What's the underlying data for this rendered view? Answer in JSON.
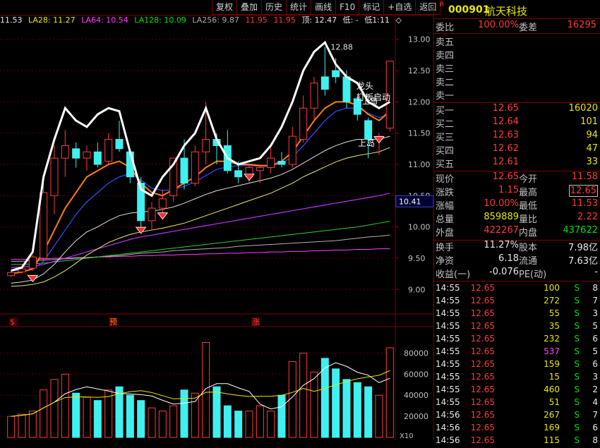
{
  "toolbar": {
    "buttons": [
      "复权",
      "叠加",
      "历史",
      "统计",
      "画线",
      "F10",
      "标记",
      "+自选",
      "返回"
    ]
  },
  "ma_line": {
    "first": "11.53",
    "la28": "LA28: 11.27",
    "la64": "LA64: 10.54",
    "la128": "LA128: 10.09",
    "la256": "LA256: 9.87",
    "v1": "11.95",
    "v2": "11.95",
    "top": "顶: 12.47",
    "low": "低: -",
    "low1": "低1:11",
    "symbol": "◇"
  },
  "chart": {
    "y_ticks": [
      "13.00",
      "12.50",
      "12.00",
      "11.50",
      "11.00",
      "10.50",
      "10.00",
      "9.50",
      "9.00"
    ],
    "price_marker": "10.41",
    "high_label": "12.88",
    "annotations": {
      "dragon": "龙头",
      "board": "打板启动",
      "island1": "上岛",
      "island2": "上岛"
    },
    "bottom_marks": [
      "$",
      "预",
      "涨"
    ],
    "vol_ticks": [
      "80000",
      "60000",
      "40000",
      "20000"
    ],
    "vol_unit": "X10"
  },
  "chart_data": {
    "type": "candlestick",
    "ylim": [
      8.8,
      13.2
    ],
    "candles": [
      {
        "o": 9.22,
        "h": 9.3,
        "l": 9.2,
        "c": 9.27
      },
      {
        "o": 9.28,
        "h": 9.35,
        "l": 9.25,
        "c": 9.33
      },
      {
        "o": 9.34,
        "h": 9.55,
        "l": 9.3,
        "c": 9.52
      },
      {
        "o": 9.5,
        "h": 10.7,
        "l": 9.45,
        "c": 10.55
      },
      {
        "o": 10.5,
        "h": 11.3,
        "l": 10.2,
        "c": 11.1
      },
      {
        "o": 11.1,
        "h": 11.55,
        "l": 10.8,
        "c": 11.3
      },
      {
        "o": 11.25,
        "h": 11.35,
        "l": 10.95,
        "c": 11.1
      },
      {
        "o": 11.1,
        "h": 11.3,
        "l": 10.9,
        "c": 11.2
      },
      {
        "o": 11.2,
        "h": 11.35,
        "l": 10.95,
        "c": 11.0
      },
      {
        "o": 11.05,
        "h": 11.5,
        "l": 11.0,
        "c": 11.4
      },
      {
        "o": 11.4,
        "h": 11.7,
        "l": 11.2,
        "c": 11.25
      },
      {
        "o": 11.2,
        "h": 11.25,
        "l": 10.7,
        "c": 10.8
      },
      {
        "o": 10.7,
        "h": 10.8,
        "l": 10.0,
        "c": 10.1
      },
      {
        "o": 10.1,
        "h": 10.4,
        "l": 9.95,
        "c": 10.3
      },
      {
        "o": 10.3,
        "h": 10.6,
        "l": 10.2,
        "c": 10.45
      },
      {
        "o": 10.5,
        "h": 11.1,
        "l": 10.4,
        "c": 11.1
      },
      {
        "o": 11.1,
        "h": 11.4,
        "l": 10.6,
        "c": 10.7
      },
      {
        "o": 10.7,
        "h": 11.3,
        "l": 10.65,
        "c": 11.2
      },
      {
        "o": 11.2,
        "h": 12.0,
        "l": 11.0,
        "c": 11.4
      },
      {
        "o": 11.4,
        "h": 11.5,
        "l": 11.0,
        "c": 11.3
      },
      {
        "o": 11.3,
        "h": 11.55,
        "l": 10.85,
        "c": 10.9
      },
      {
        "o": 10.9,
        "h": 11.05,
        "l": 10.7,
        "c": 10.8
      },
      {
        "o": 10.8,
        "h": 11.0,
        "l": 10.7,
        "c": 10.95
      },
      {
        "o": 10.9,
        "h": 11.0,
        "l": 10.7,
        "c": 10.95
      },
      {
        "o": 10.95,
        "h": 11.3,
        "l": 10.85,
        "c": 11.1
      },
      {
        "o": 11.05,
        "h": 11.2,
        "l": 10.95,
        "c": 11.0
      },
      {
        "o": 11.0,
        "h": 11.6,
        "l": 10.95,
        "c": 11.45
      },
      {
        "o": 11.4,
        "h": 12.1,
        "l": 11.35,
        "c": 11.9
      },
      {
        "o": 11.9,
        "h": 12.4,
        "l": 11.7,
        "c": 12.3
      },
      {
        "o": 12.4,
        "h": 12.88,
        "l": 12.1,
        "c": 12.2
      },
      {
        "o": 12.5,
        "h": 12.7,
        "l": 12.3,
        "c": 12.4
      },
      {
        "o": 12.4,
        "h": 12.5,
        "l": 11.9,
        "c": 12.0
      },
      {
        "o": 12.05,
        "h": 12.1,
        "l": 11.7,
        "c": 11.8
      },
      {
        "o": 11.7,
        "h": 11.75,
        "l": 11.1,
        "c": 11.4
      },
      {
        "o": 11.4,
        "h": 11.5,
        "l": 11.15,
        "c": 11.45
      },
      {
        "o": 11.58,
        "h": 12.65,
        "l": 11.53,
        "c": 12.65
      }
    ],
    "white_line": [
      9.3,
      9.35,
      9.6,
      10.8,
      11.4,
      11.9,
      11.7,
      11.6,
      11.8,
      11.9,
      11.85,
      11.2,
      10.6,
      10.5,
      10.8,
      11.0,
      11.3,
      11.5,
      11.9,
      11.4,
      11.1,
      11.0,
      11.05,
      11.1,
      11.3,
      11.6,
      12.0,
      12.5,
      12.8,
      12.95,
      12.6,
      12.4,
      12.3,
      12.0,
      11.9,
      12.0
    ],
    "ma_orange": [
      9.25,
      9.28,
      9.33,
      9.6,
      9.95,
      10.3,
      10.55,
      10.8,
      10.9,
      11.0,
      11.05,
      10.95,
      10.7,
      10.55,
      10.5,
      10.6,
      10.7,
      10.8,
      10.95,
      11.05,
      11.05,
      11.0,
      11.0,
      10.98,
      10.98,
      11.05,
      11.2,
      11.45,
      11.7,
      11.9,
      12.0,
      12.0,
      11.95,
      11.8,
      11.7,
      11.85
    ],
    "ma_blue": [
      9.3,
      9.3,
      9.32,
      9.45,
      9.7,
      9.95,
      10.2,
      10.4,
      10.55,
      10.7,
      10.8,
      10.85,
      10.75,
      10.62,
      10.58,
      10.6,
      10.65,
      10.72,
      10.82,
      10.92,
      10.96,
      10.98,
      10.98,
      10.97,
      10.97,
      11.02,
      11.12,
      11.3,
      11.5,
      11.7,
      11.85,
      11.9,
      11.9,
      11.82,
      11.75,
      11.8
    ],
    "ma_white_thin": [
      9.1,
      9.12,
      9.15,
      9.25,
      9.4,
      9.6,
      9.78,
      9.92,
      10.0,
      10.1,
      10.18,
      10.22,
      10.24,
      10.25,
      10.28,
      10.32,
      10.38,
      10.45,
      10.52,
      10.58,
      10.62,
      10.66,
      10.7,
      10.74,
      10.78,
      10.84,
      10.92,
      11.02,
      11.12,
      11.22,
      11.3,
      11.36,
      11.4,
      11.4,
      11.4,
      11.45
    ],
    "ma_yellow": [
      9.05,
      9.06,
      9.08,
      9.12,
      9.2,
      9.3,
      9.42,
      9.55,
      9.65,
      9.75,
      9.82,
      9.88,
      9.92,
      9.95,
      9.98,
      10.02,
      10.06,
      10.12,
      10.18,
      10.24,
      10.3,
      10.36,
      10.42,
      10.48,
      10.54,
      10.62,
      10.7,
      10.8,
      10.88,
      10.96,
      11.04,
      11.1,
      11.14,
      11.17,
      11.2,
      11.27
    ],
    "ma_magenta": [
      9.35,
      9.36,
      9.37,
      9.4,
      9.45,
      9.5,
      9.55,
      9.6,
      9.65,
      9.7,
      9.75,
      9.8,
      9.84,
      9.87,
      9.9,
      9.93,
      9.96,
      9.99,
      10.02,
      10.05,
      10.08,
      10.11,
      10.14,
      10.17,
      10.2,
      10.23,
      10.26,
      10.29,
      10.32,
      10.35,
      10.38,
      10.41,
      10.44,
      10.47,
      10.5,
      10.54
    ],
    "ma_green": [
      9.4,
      9.4,
      9.41,
      9.42,
      9.44,
      9.46,
      9.48,
      9.5,
      9.52,
      9.54,
      9.56,
      9.58,
      9.6,
      9.62,
      9.64,
      9.66,
      9.68,
      9.7,
      9.72,
      9.74,
      9.76,
      9.78,
      9.8,
      9.82,
      9.84,
      9.86,
      9.88,
      9.9,
      9.92,
      9.94,
      9.96,
      9.98,
      10.0,
      10.03,
      10.06,
      10.09
    ],
    "ma_gray": [
      9.45,
      9.45,
      9.46,
      9.47,
      9.48,
      9.49,
      9.5,
      9.51,
      9.52,
      9.53,
      9.54,
      9.56,
      9.58,
      9.59,
      9.6,
      9.62,
      9.63,
      9.64,
      9.65,
      9.66,
      9.67,
      9.69,
      9.7,
      9.71,
      9.72,
      9.73,
      9.74,
      9.75,
      9.76,
      9.77,
      9.78,
      9.8,
      9.82,
      9.84,
      9.85,
      9.87
    ],
    "ma_pink": [
      9.48,
      9.48,
      9.49,
      9.49,
      9.5,
      9.5,
      9.51,
      9.51,
      9.52,
      9.52,
      9.53,
      9.53,
      9.54,
      9.54,
      9.55,
      9.55,
      9.56,
      9.56,
      9.57,
      9.57,
      9.58,
      9.58,
      9.59,
      9.59,
      9.6,
      9.6,
      9.61,
      9.61,
      9.62,
      9.62,
      9.63,
      9.63,
      9.64,
      9.64,
      9.65,
      9.65
    ],
    "volumes": [
      20000,
      22000,
      25000,
      45000,
      55000,
      60000,
      42000,
      38000,
      35000,
      45000,
      48000,
      40000,
      35000,
      28000,
      25000,
      30000,
      45000,
      42000,
      90000,
      48000,
      30000,
      25000,
      25000,
      30000,
      25000,
      40000,
      72000,
      80000,
      62000,
      75000,
      65000,
      55000,
      52000,
      48000,
      40000,
      85000
    ],
    "vol_ylim": [
      0,
      95000
    ]
  },
  "panel": {
    "code": "000901",
    "name": "航天科技",
    "r_mark": "R",
    "wb_label": "委比",
    "wb_value": "100.00%",
    "wc_label": "委差",
    "wc_value": "16295",
    "sells": [
      {
        "label": "卖五",
        "price": "",
        "vol": ""
      },
      {
        "label": "卖四",
        "price": "",
        "vol": ""
      },
      {
        "label": "卖三",
        "price": "",
        "vol": ""
      },
      {
        "label": "卖二",
        "price": "",
        "vol": ""
      },
      {
        "label": "卖一",
        "price": "",
        "vol": ""
      }
    ],
    "buys": [
      {
        "label": "买一",
        "price": "12.65",
        "vol": "16020"
      },
      {
        "label": "买二",
        "price": "12.64",
        "vol": "101"
      },
      {
        "label": "买三",
        "price": "12.63",
        "vol": "94"
      },
      {
        "label": "买四",
        "price": "12.62",
        "vol": "47"
      },
      {
        "label": "买五",
        "price": "12.61",
        "vol": "33"
      }
    ],
    "stats": [
      {
        "l1": "现价",
        "v1": "12.65",
        "c1": "red",
        "l2": "今开",
        "v2": "11.58",
        "c2": "red",
        "boxed": false
      },
      {
        "l1": "涨跌",
        "v1": "1.15",
        "c1": "red",
        "l2": "最高",
        "v2": "12.65",
        "c2": "red",
        "boxed": true
      },
      {
        "l1": "涨幅",
        "v1": "10.00%",
        "c1": "red",
        "l2": "最低",
        "v2": "11.53",
        "c2": "red",
        "boxed": false
      },
      {
        "l1": "总量",
        "v1": "859889",
        "c1": "yel",
        "l2": "量比",
        "v2": "2.22",
        "c2": "red",
        "boxed": false
      },
      {
        "l1": "外盘",
        "v1": "422267",
        "c1": "red",
        "l2": "内盘",
        "v2": "437622",
        "c2": "green",
        "boxed": false
      }
    ],
    "fin": [
      {
        "l1": "换手",
        "v1": "11.27%",
        "l2": "股本",
        "v2": "7.98亿"
      },
      {
        "l1": "净资",
        "v1": "6.18",
        "l2": "流通",
        "v2": "7.63亿"
      },
      {
        "l1": "收益(一)",
        "v1": "-0.076",
        "l2": "PE(动)",
        "v2": "-"
      }
    ],
    "ticks": [
      {
        "t": "14:55",
        "p": "12.65",
        "v": "100",
        "s": "S",
        "n": "8",
        "vc": "yel"
      },
      {
        "t": "14:55",
        "p": "12.65",
        "v": "272",
        "s": "S",
        "n": "7",
        "vc": "yel"
      },
      {
        "t": "14:55",
        "p": "12.65",
        "v": "55",
        "s": "S",
        "n": "3",
        "vc": "yel"
      },
      {
        "t": "14:55",
        "p": "12.65",
        "v": "35",
        "s": "S",
        "n": "5",
        "vc": "yel"
      },
      {
        "t": "14:55",
        "p": "12.65",
        "v": "232",
        "s": "S",
        "n": "6",
        "vc": "yel"
      },
      {
        "t": "14:55",
        "p": "12.65",
        "v": "537",
        "s": "S",
        "n": "5",
        "vc": "mag"
      },
      {
        "t": "14:55",
        "p": "12.65",
        "v": "159",
        "s": "S",
        "n": "6",
        "vc": "yel"
      },
      {
        "t": "14:55",
        "p": "12.65",
        "v": "15",
        "s": "S",
        "n": "3",
        "vc": "yel"
      },
      {
        "t": "14:55",
        "p": "12.65",
        "v": "460",
        "s": "S",
        "n": "2",
        "vc": "yel"
      },
      {
        "t": "14:55",
        "p": "12.65",
        "v": "51",
        "s": "S",
        "n": "4",
        "vc": "yel"
      },
      {
        "t": "14:56",
        "p": "12.65",
        "v": "267",
        "s": "S",
        "n": "7",
        "vc": "yel"
      },
      {
        "t": "14:56",
        "p": "12.65",
        "v": "169",
        "s": "S",
        "n": "6",
        "vc": "yel"
      },
      {
        "t": "14:56",
        "p": "12.65",
        "v": "115",
        "s": "S",
        "n": "8",
        "vc": "yel"
      }
    ]
  }
}
